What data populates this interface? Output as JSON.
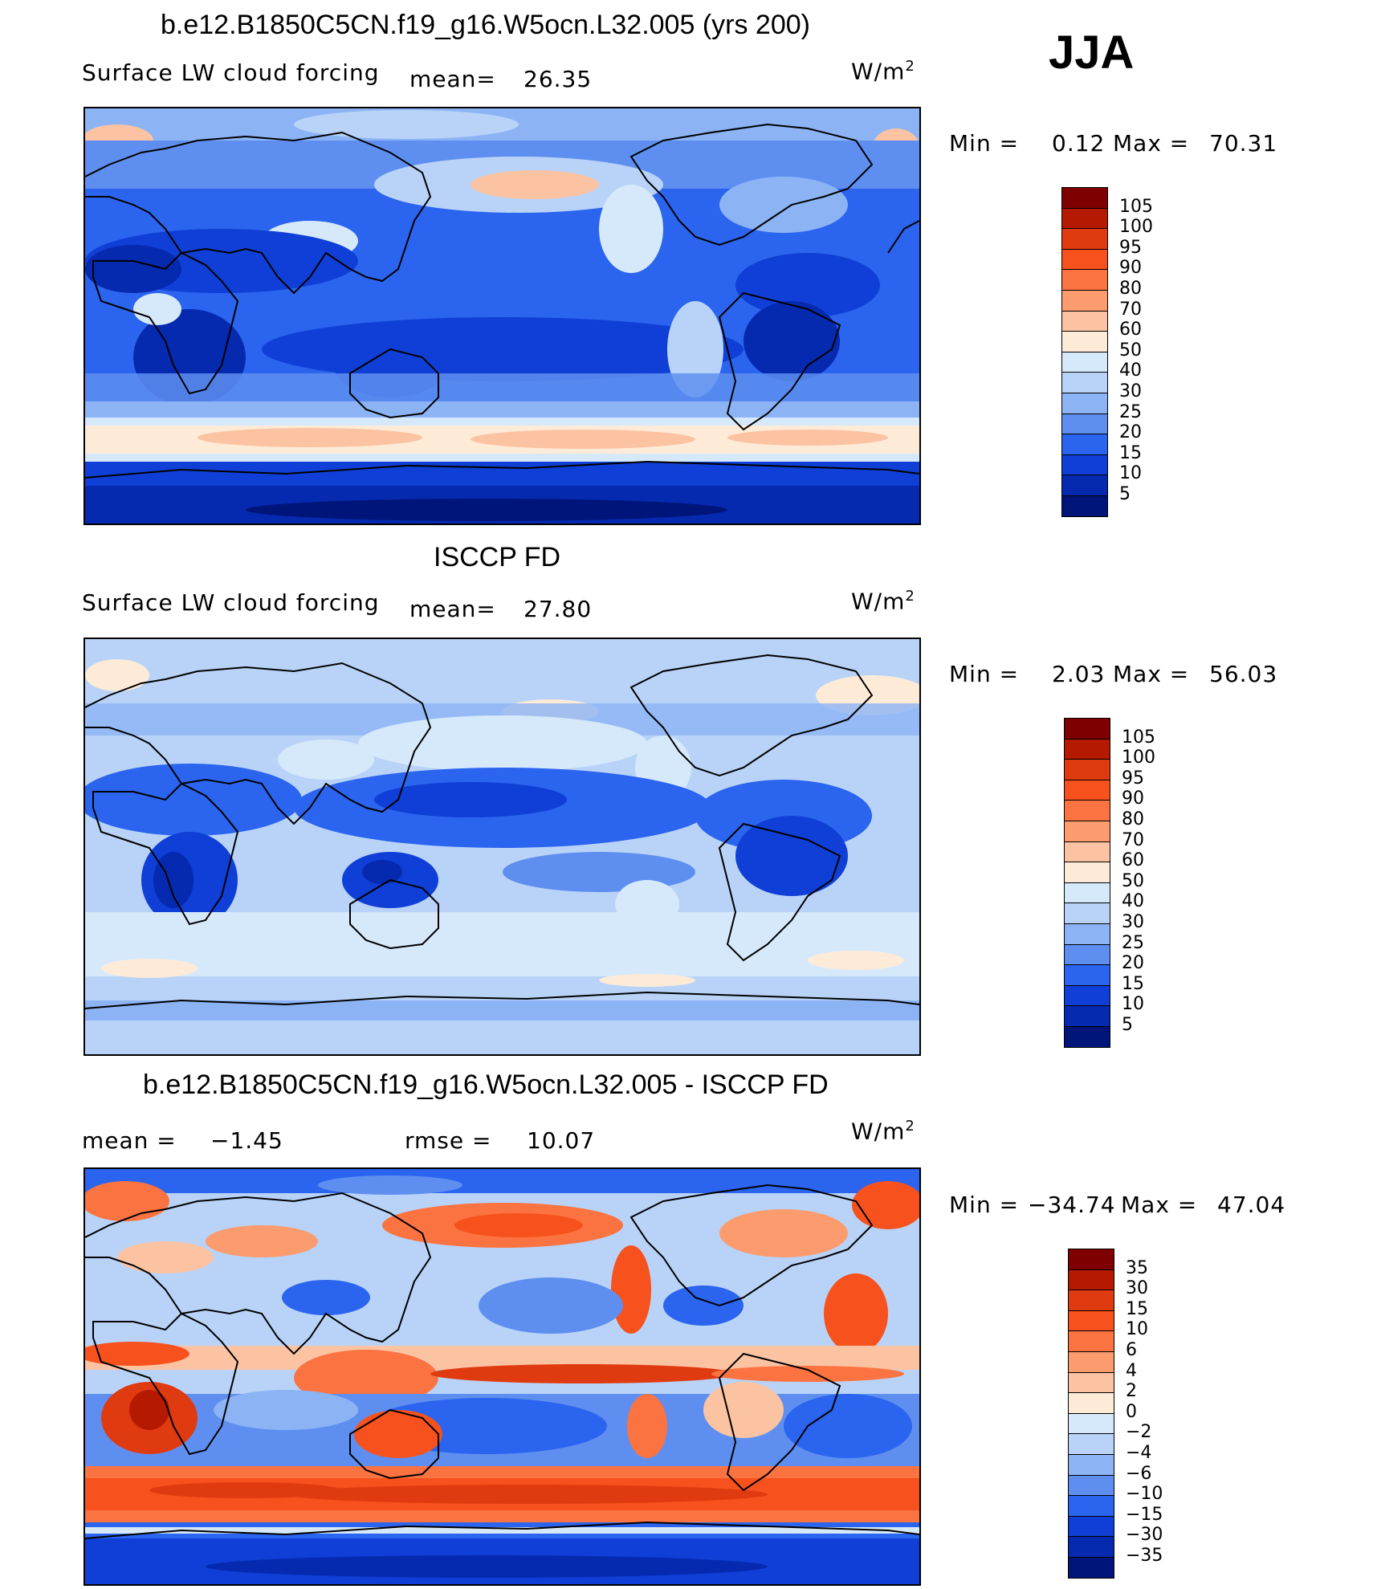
{
  "season": "JJA",
  "units": "W/m",
  "units_sup": "2",
  "panels": [
    {
      "title": "b.e12.B1850C5CN.f19_g16.W5ocn.L32.005 (yrs 200)",
      "subtitle": "Surface LW cloud forcing",
      "mean_label": "mean=",
      "mean_value": "26.35",
      "min_label": "Min  =",
      "min_value": "0.12",
      "max_label": "Max  =",
      "max_value": "70.31"
    },
    {
      "title": "ISCCP FD",
      "subtitle": "Surface LW cloud forcing",
      "mean_label": "mean=",
      "mean_value": "27.80",
      "min_label": "Min  =",
      "min_value": "2.03",
      "max_label": "Max  =",
      "max_value": "56.03"
    },
    {
      "title": "b.e12.B1850C5CN.f19_g16.W5ocn.L32.005 - ISCCP FD",
      "mean_label": "mean  =",
      "mean_value": "−1.45",
      "rmse_label": "rmse  =",
      "rmse_value": "10.07",
      "min_label": "Min  =",
      "min_value": "−34.74",
      "max_label": "Max  =",
      "max_value": "47.04"
    }
  ],
  "chart_data": [
    {
      "type": "heatmap",
      "title": "b.e12.B1850C5CN.f19_g16.W5ocn.L32.005 (yrs 200)",
      "variable": "Surface LW cloud forcing",
      "units": "W/m2",
      "mean": 26.35,
      "min": 0.12,
      "max": 70.31,
      "colorbar_levels": [
        "105",
        "100",
        "95",
        "90",
        "80",
        "70",
        "60",
        "50",
        "40",
        "30",
        "25",
        "20",
        "15",
        "10",
        "5"
      ],
      "colorbar_colors": [
        "#7f0000",
        "#b51a00",
        "#e03a10",
        "#f7521d",
        "#fb7341",
        "#fc9b6e",
        "#fcc3a3",
        "#fdebd8",
        "#d6e9fb",
        "#b8d3f7",
        "#8cb4f5",
        "#5e8ff0",
        "#2b64ee",
        "#0f3fd6",
        "#052ab0",
        "#00157a"
      ]
    },
    {
      "type": "heatmap",
      "title": "ISCCP FD",
      "variable": "Surface LW cloud forcing",
      "units": "W/m2",
      "mean": 27.8,
      "min": 2.03,
      "max": 56.03,
      "colorbar_levels": [
        "105",
        "100",
        "95",
        "90",
        "80",
        "70",
        "60",
        "50",
        "40",
        "30",
        "25",
        "20",
        "15",
        "10",
        "5"
      ],
      "colorbar_colors": [
        "#7f0000",
        "#b51a00",
        "#e03a10",
        "#f7521d",
        "#fb7341",
        "#fc9b6e",
        "#fcc3a3",
        "#fdebd8",
        "#d6e9fb",
        "#b8d3f7",
        "#8cb4f5",
        "#5e8ff0",
        "#2b64ee",
        "#0f3fd6",
        "#052ab0",
        "#00157a"
      ]
    },
    {
      "type": "heatmap",
      "title": "b.e12.B1850C5CN.f19_g16.W5ocn.L32.005 - ISCCP FD",
      "units": "W/m2",
      "mean": -1.45,
      "rmse": 10.07,
      "min": -34.74,
      "max": 47.04,
      "colorbar_levels": [
        "35",
        "30",
        "15",
        "10",
        "6",
        "4",
        "2",
        "0",
        "−2",
        "−4",
        "−6",
        "−10",
        "−15",
        "−30",
        "−35"
      ],
      "colorbar_colors": [
        "#7f0000",
        "#b51a00",
        "#e03a10",
        "#f7521d",
        "#fb7341",
        "#fc9b6e",
        "#fcc3a3",
        "#fdebd8",
        "#d6e9fb",
        "#b8d3f7",
        "#8cb4f5",
        "#5e8ff0",
        "#2b64ee",
        "#0f3fd6",
        "#052ab0",
        "#00157a"
      ]
    }
  ]
}
